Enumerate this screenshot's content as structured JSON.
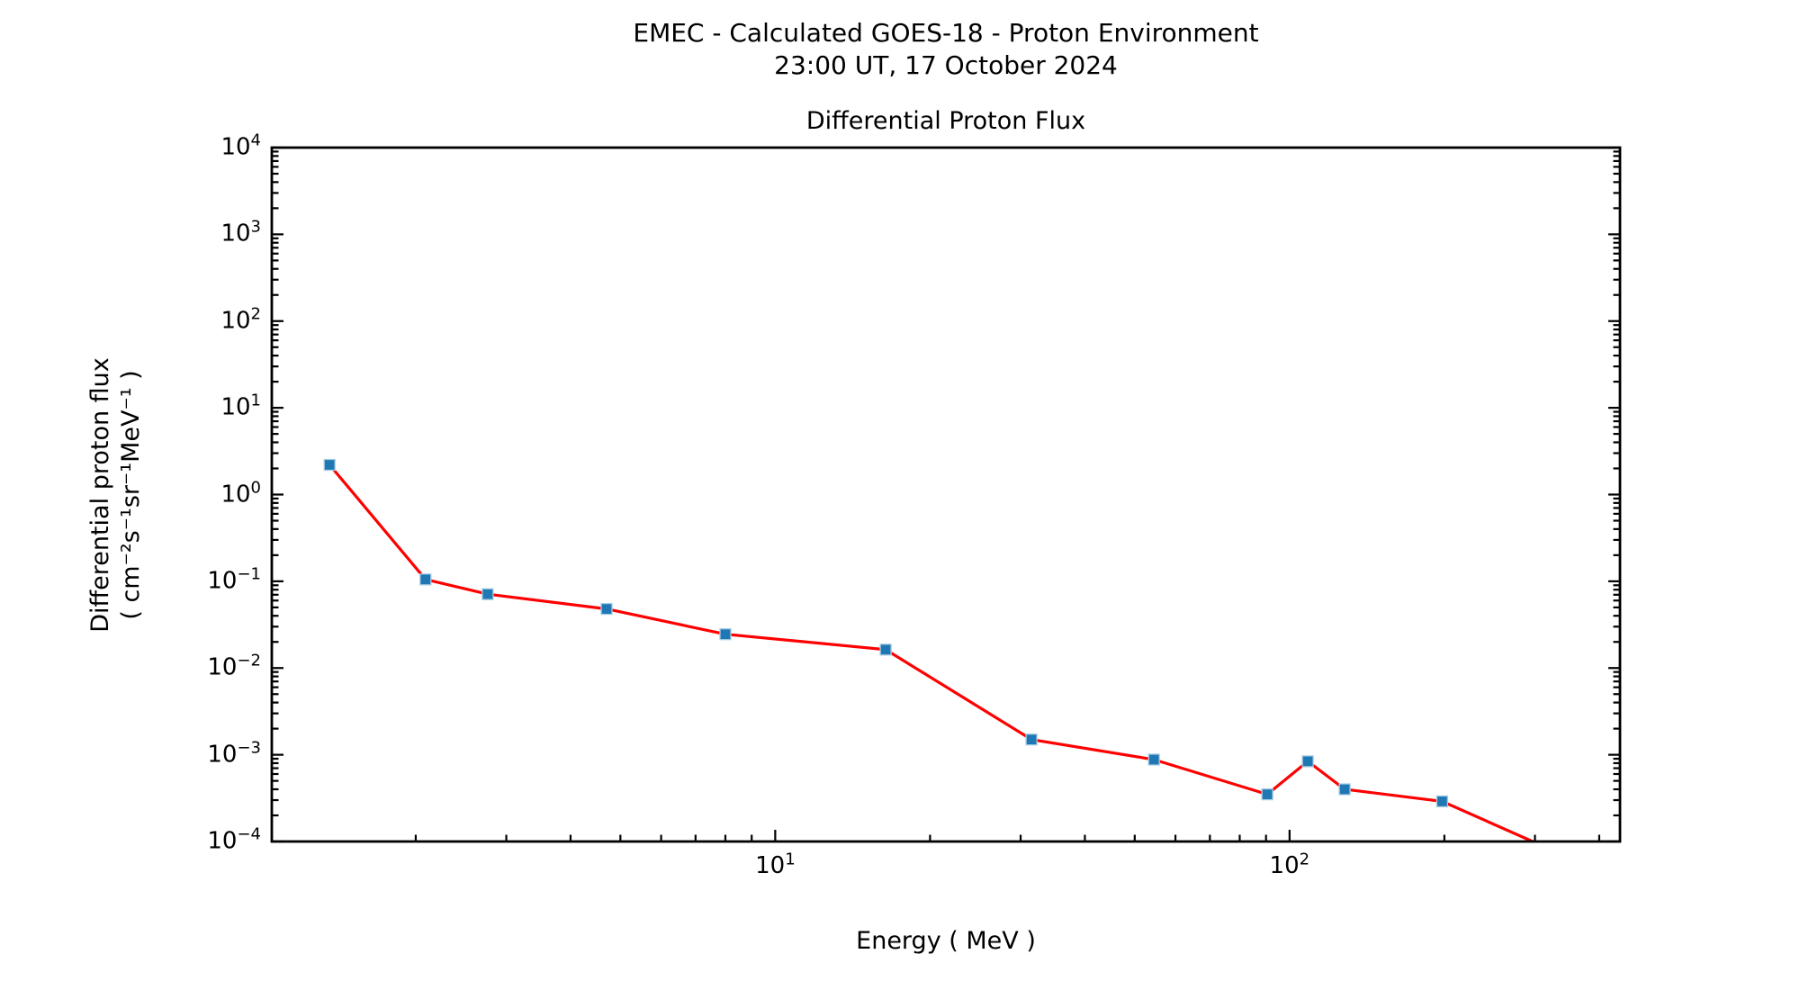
{
  "figure": {
    "title_line1": "EMEC - Calculated GOES-18 - Proton Environment",
    "title_line2": "23:00 UT, 17 October 2024"
  },
  "chart_data": {
    "type": "line",
    "title": "Differential Proton Flux",
    "xlabel": "Energy ( MeV )",
    "ylabel_line1": "Differential proton flux",
    "ylabel_line2": "( cm⁻²s⁻¹sr⁻¹MeV⁻¹ )",
    "x_scale": "log",
    "y_scale": "log",
    "xlim": [
      1.05,
      439
    ],
    "ylim": [
      0.0001,
      10000
    ],
    "x_major_ticks": [
      10,
      100
    ],
    "y_major_ticks": [
      10000,
      1000,
      100,
      10,
      1,
      0.1,
      0.01,
      0.001,
      0.0001
    ],
    "grid": false,
    "legend": "none",
    "axis_color": "#000000",
    "series": [
      {
        "name": "differential proton flux",
        "line_color": "#ff0000",
        "marker": "square",
        "marker_color": "#1f77b4",
        "marker_edge_color": "#a6cee3",
        "points": [
          {
            "energy_mev": 1.36,
            "flux": 2.2
          },
          {
            "energy_mev": 2.09,
            "flux": 0.105
          },
          {
            "energy_mev": 2.76,
            "flux": 0.071
          },
          {
            "energy_mev": 4.7,
            "flux": 0.048
          },
          {
            "energy_mev": 8.0,
            "flux": 0.0245
          },
          {
            "energy_mev": 16.4,
            "flux": 0.0163
          },
          {
            "energy_mev": 31.5,
            "flux": 0.0015
          },
          {
            "energy_mev": 54.5,
            "flux": 0.00088
          },
          {
            "energy_mev": 90.5,
            "flux": 0.00035
          },
          {
            "energy_mev": 108.5,
            "flux": 0.00084
          },
          {
            "energy_mev": 128,
            "flux": 0.0004
          },
          {
            "energy_mev": 198,
            "flux": 0.00029
          },
          {
            "energy_mev": 346,
            "flux": 6.7e-05
          }
        ],
        "note": "final point lies below the plotted y-range; its segment is clipped at the bottom axis"
      }
    ]
  }
}
